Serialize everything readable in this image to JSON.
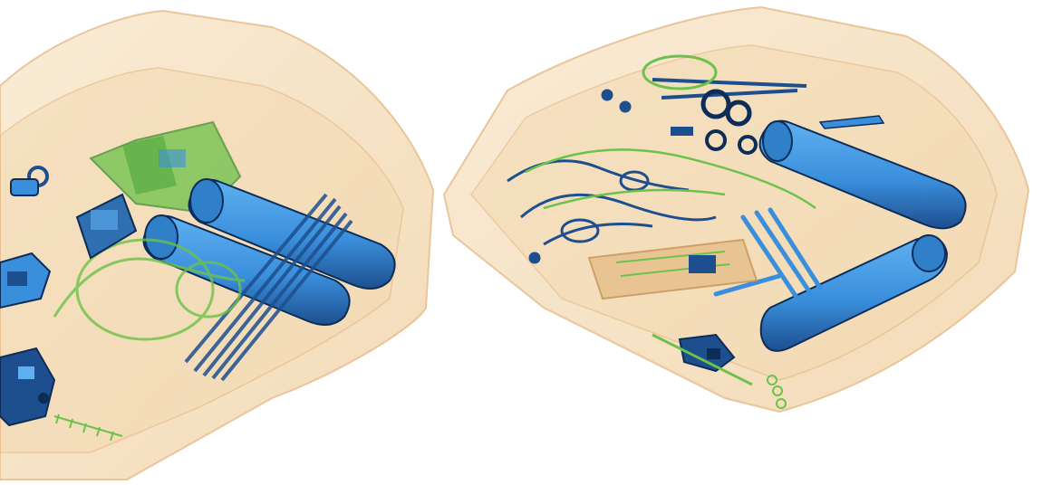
{
  "scan": {
    "image_type": "xray-baggage-scan",
    "background_color": "#ffffff",
    "palette": {
      "organic": "#f3d9b1",
      "organic_dark": "#e4b27a",
      "mixed": "#6cc24a",
      "inorganic": "#3a8fdc",
      "dense": "#1d4f8f",
      "edge": "#0c2d57"
    },
    "bins": [
      {
        "id": "left-bin",
        "contents": [
          "cylinder-canister",
          "cylinder-canister",
          "rod-bundle",
          "green-bag",
          "padlock",
          "binder-clip",
          "small-device",
          "clips-and-wires"
        ]
      },
      {
        "id": "right-bin",
        "contents": [
          "cylinder-canister",
          "cylinder-canister",
          "scissors",
          "utensils",
          "keys",
          "circuit-board",
          "knife",
          "wires-and-clips",
          "small-device"
        ]
      }
    ]
  }
}
